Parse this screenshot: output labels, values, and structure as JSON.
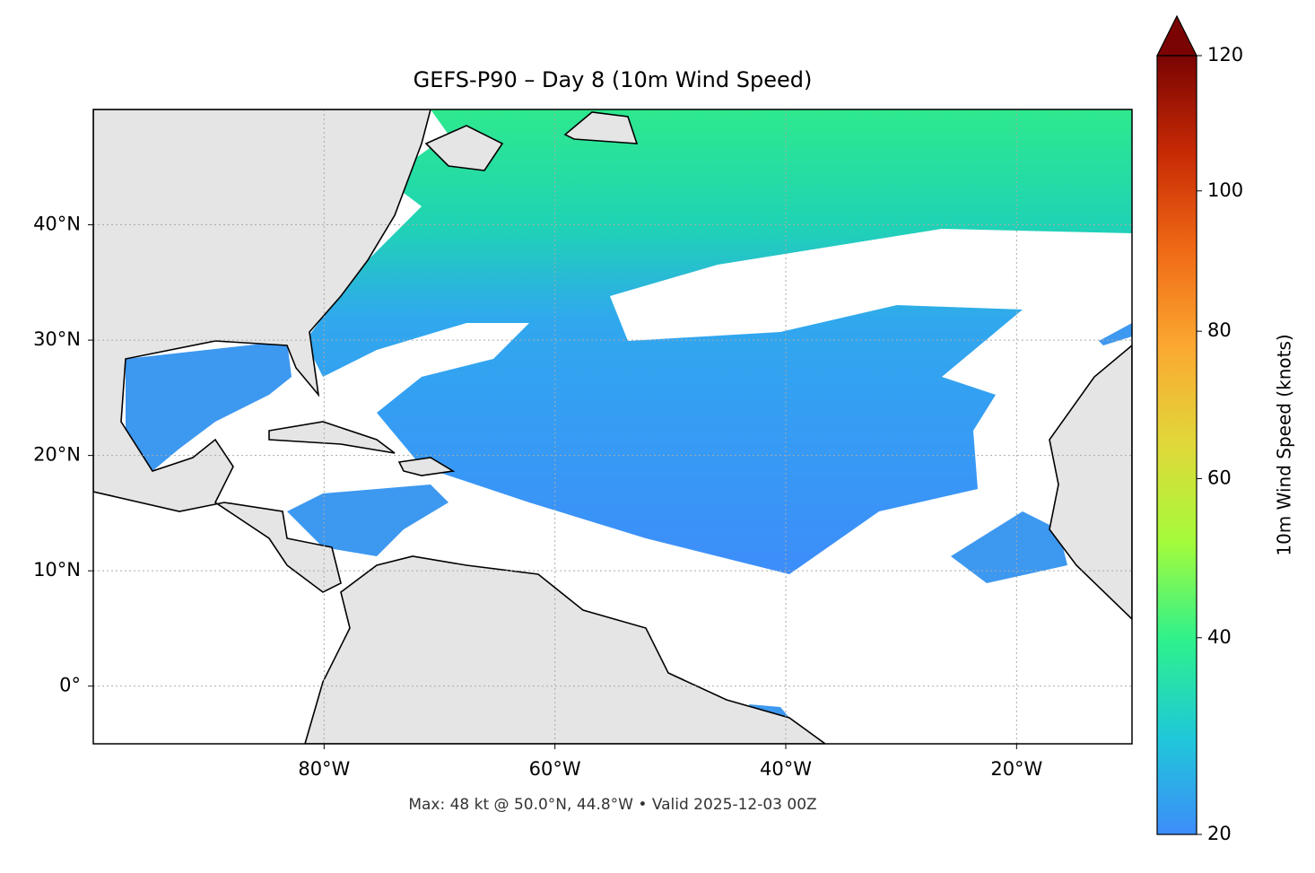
{
  "title": "GEFS-P90 – Day 8 (10m Wind Speed)",
  "footer": "Max: 48 kt @ 50.0°N, 44.8°W • Valid 2025-12-03 00Z",
  "map": {
    "xlim": [
      -100,
      -10
    ],
    "ylim": [
      -5,
      50
    ],
    "grid": true,
    "xticks": [
      {
        "value": -80,
        "label": "80°W"
      },
      {
        "value": -60,
        "label": "60°W"
      },
      {
        "value": -40,
        "label": "40°W"
      },
      {
        "value": -20,
        "label": "20°W"
      }
    ],
    "yticks": [
      {
        "value": 0,
        "label": "0°"
      },
      {
        "value": 10,
        "label": "10°N"
      },
      {
        "value": 20,
        "label": "20°N"
      },
      {
        "value": 30,
        "label": "30°N"
      },
      {
        "value": 40,
        "label": "40°N"
      }
    ]
  },
  "colorbar": {
    "label": "10m Wind Speed (knots)",
    "lim": [
      20,
      120
    ],
    "ticks": [
      20,
      40,
      60,
      80,
      100,
      120
    ],
    "norm": {
      "type": "power",
      "gamma": 0.855
    },
    "extend": "max",
    "colors": [
      "#3d8dfa",
      "#1fc8d8",
      "#2ef18c",
      "#a4fb3b",
      "#e0d83a",
      "#fba931",
      "#f06a16",
      "#c72a04",
      "#7a0403"
    ]
  }
}
